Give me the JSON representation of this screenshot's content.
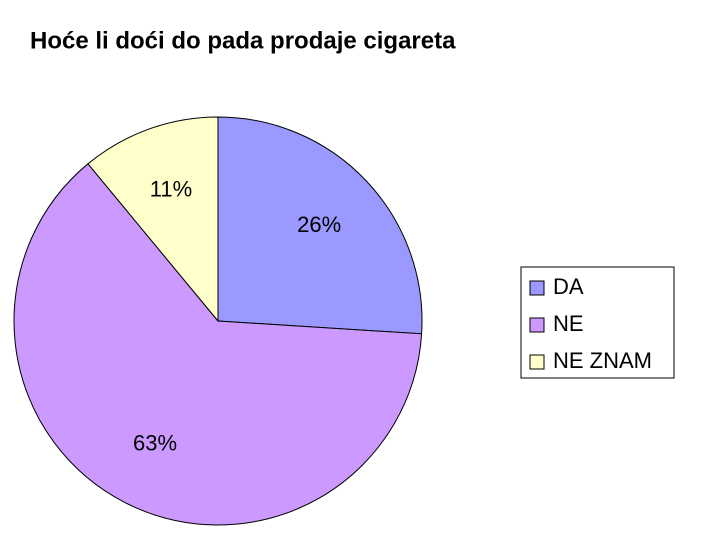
{
  "chart_data": {
    "type": "pie",
    "title": "Hoće li doći do pada prodaje cigareta",
    "categories": [
      "DA",
      "NE",
      "NE ZNAM"
    ],
    "values": [
      26,
      63,
      11
    ],
    "value_labels": [
      "26%",
      "63%",
      "11%"
    ],
    "colors": [
      "#9999ff",
      "#cc99ff",
      "#ffffcc"
    ],
    "legend": "right"
  }
}
